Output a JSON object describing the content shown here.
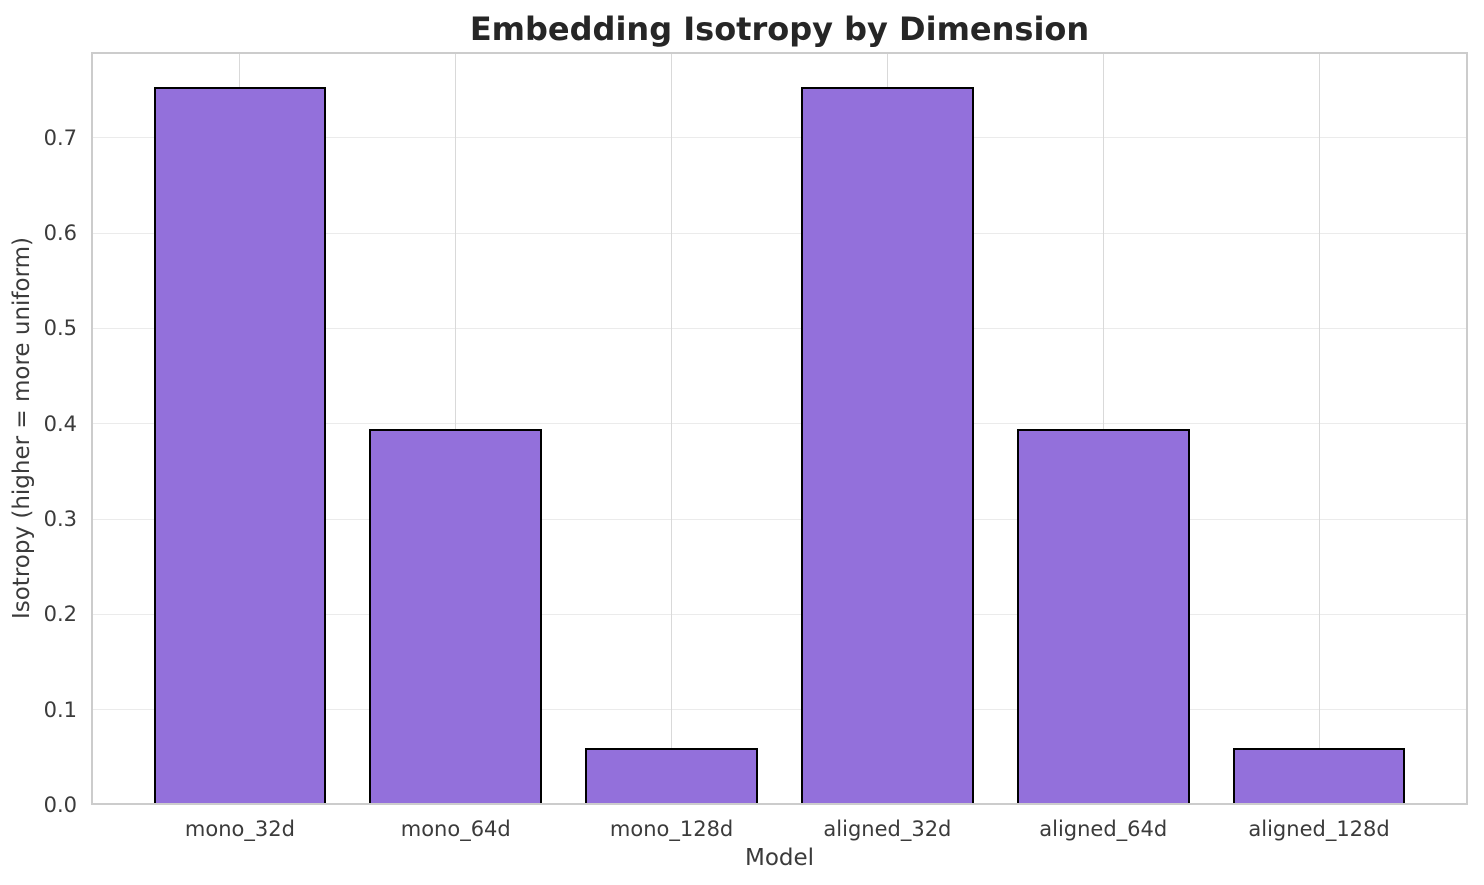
{
  "chart_data": {
    "type": "bar",
    "title": "Embedding Isotropy by Dimension",
    "xlabel": "Model",
    "ylabel": "Isotropy (higher = more uniform)",
    "categories": [
      "mono_32d",
      "mono_64d",
      "mono_128d",
      "aligned_32d",
      "aligned_64d",
      "aligned_128d"
    ],
    "values": [
      0.753,
      0.394,
      0.06,
      0.753,
      0.394,
      0.06
    ],
    "ylim": [
      0,
      0.79
    ],
    "yticks": [
      0.0,
      0.1,
      0.2,
      0.3,
      0.4,
      0.5,
      0.6,
      0.7
    ],
    "grid": true,
    "legend": false,
    "colors": {
      "bar_fill": "#9370DB",
      "bar_edge": "#000000",
      "grid_h": "#ebebeb",
      "grid_v": "#d9d9d9",
      "spine": "#cccccc",
      "title_text": "#262626",
      "tick_text": "#3b3b3b",
      "background": "#ffffff"
    }
  }
}
